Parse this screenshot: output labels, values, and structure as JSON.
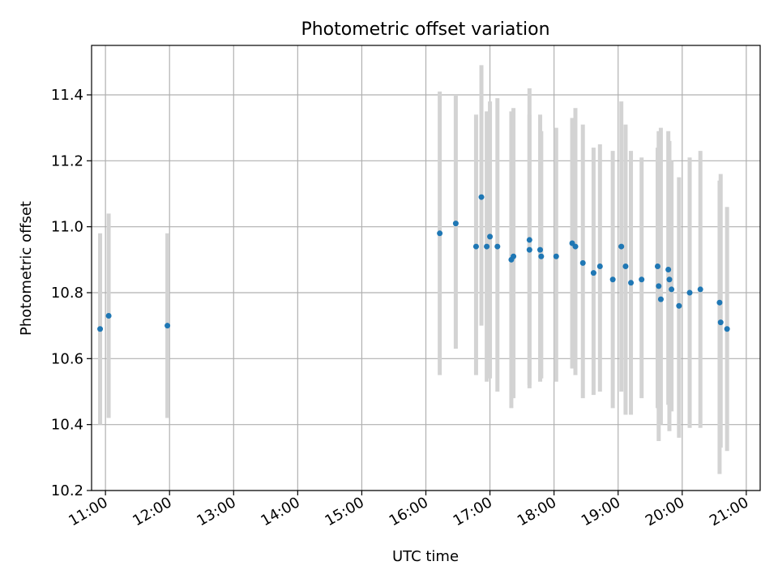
{
  "chart_data": {
    "type": "scatter",
    "title": "Photometric offset variation",
    "xlabel": "UTC time",
    "ylabel": "Photometric offset",
    "x_tick_labels": [
      "11:00",
      "12:00",
      "13:00",
      "14:00",
      "15:00",
      "16:00",
      "17:00",
      "18:00",
      "19:00",
      "20:00",
      "21:00"
    ],
    "x_ticks_hours": [
      11,
      12,
      13,
      14,
      15,
      16,
      17,
      18,
      19,
      20,
      21
    ],
    "y_tick_labels": [
      "10.2",
      "10.4",
      "10.6",
      "10.8",
      "11.0",
      "11.2",
      "11.4"
    ],
    "y_ticks": [
      10.2,
      10.4,
      10.6,
      10.8,
      11.0,
      11.2,
      11.4
    ],
    "xlim": [
      "10:47",
      "21:13"
    ],
    "ylim": [
      10.2,
      11.55
    ],
    "grid": true,
    "point_color": "#1f77b4",
    "errorbar_color": "#d3d3d3",
    "series": [
      {
        "x": [
          "10:55",
          "11:03",
          "11:58",
          "16:13",
          "16:28",
          "16:47",
          "16:52",
          "16:57",
          "17:00",
          "17:07",
          "17:20",
          "17:22",
          "17:37",
          "17:37",
          "17:47",
          "17:48",
          "18:02",
          "18:17",
          "18:20",
          "18:27",
          "18:37",
          "18:43",
          "18:55",
          "19:03",
          "19:07",
          "19:12",
          "19:22",
          "19:37",
          "19:38",
          "19:40",
          "19:47",
          "19:48",
          "19:50",
          "19:57",
          "20:07",
          "20:17",
          "20:35",
          "20:36",
          "20:42"
        ],
        "y": [
          10.69,
          10.73,
          10.7,
          10.98,
          11.01,
          10.94,
          11.09,
          10.94,
          10.97,
          10.94,
          10.9,
          10.91,
          10.96,
          10.93,
          10.93,
          10.91,
          10.91,
          10.95,
          10.94,
          10.89,
          10.86,
          10.88,
          10.84,
          10.94,
          10.88,
          10.83,
          10.84,
          10.88,
          10.82,
          10.78,
          10.87,
          10.84,
          10.81,
          10.76,
          10.8,
          10.81,
          10.77,
          10.71,
          10.69
        ],
        "err_low": [
          10.4,
          10.42,
          10.42,
          10.55,
          10.63,
          10.55,
          10.7,
          10.53,
          10.54,
          10.5,
          10.45,
          10.48,
          10.52,
          10.51,
          10.53,
          10.54,
          10.53,
          10.57,
          10.55,
          10.48,
          10.49,
          10.5,
          10.45,
          10.5,
          10.43,
          10.43,
          10.48,
          10.45,
          10.35,
          10.4,
          10.46,
          10.38,
          10.44,
          10.36,
          10.39,
          10.39,
          10.25,
          10.33,
          10.32
        ],
        "err_high": [
          10.98,
          11.04,
          10.98,
          11.41,
          11.4,
          11.34,
          11.49,
          11.35,
          11.38,
          11.39,
          11.35,
          11.36,
          11.42,
          11.34,
          11.34,
          11.29,
          11.3,
          11.33,
          11.36,
          11.31,
          11.24,
          11.25,
          11.23,
          11.38,
          11.31,
          11.23,
          11.21,
          11.24,
          11.29,
          11.3,
          11.29,
          11.26,
          11.2,
          11.15,
          11.21,
          11.23,
          11.14,
          11.16,
          11.06
        ]
      }
    ]
  }
}
